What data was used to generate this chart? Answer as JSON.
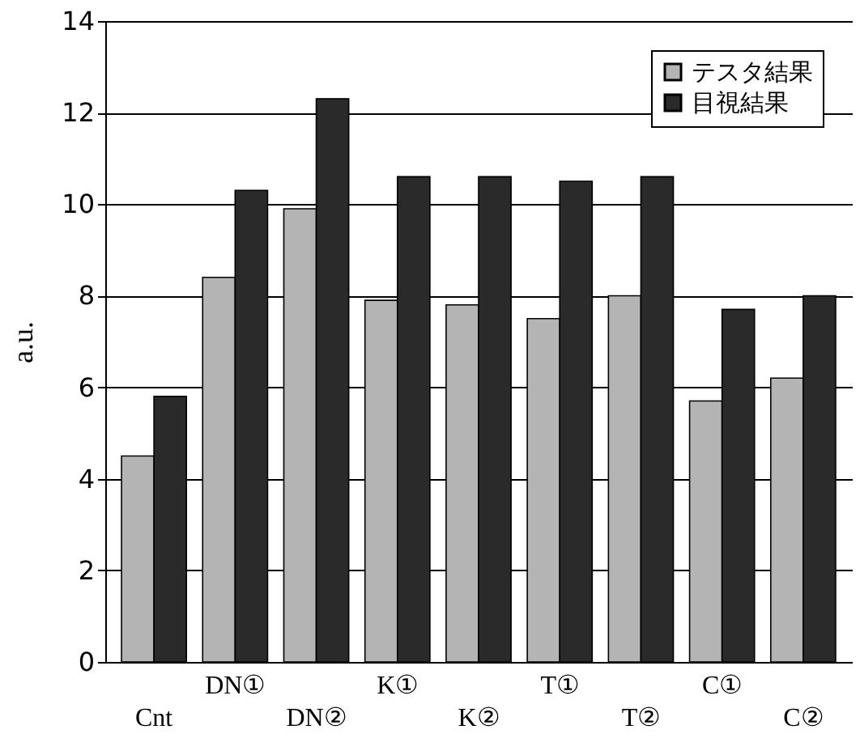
{
  "chart_data": {
    "type": "bar",
    "ylabel": "a.u.",
    "categories": [
      "Cnt",
      "DN①",
      "DN②",
      "K①",
      "K②",
      "T①",
      "T②",
      "C①",
      "C②"
    ],
    "series": [
      {
        "name": "テスタ結果",
        "color": "#b4b4b4",
        "values": [
          4.5,
          8.4,
          9.9,
          7.9,
          7.8,
          7.5,
          8.0,
          5.7,
          6.2
        ]
      },
      {
        "name": "目視結果",
        "color": "#2a2a2a",
        "values": [
          5.8,
          10.3,
          12.3,
          10.6,
          10.6,
          10.5,
          10.6,
          7.7,
          8.0
        ]
      }
    ],
    "ylim": [
      0,
      14
    ],
    "yticks": [
      0,
      2,
      4,
      6,
      8,
      10,
      12,
      14
    ],
    "grid": "y",
    "legend": "top right"
  }
}
